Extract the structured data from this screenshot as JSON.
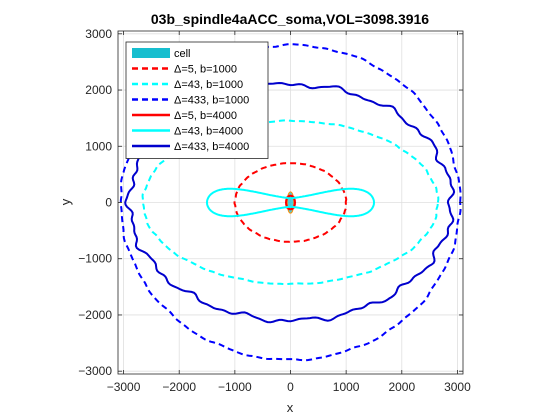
{
  "chart_data": {
    "type": "line",
    "title": "03b_spindle4aACC_soma,VOL=3098.3916",
    "xlabel": "x",
    "ylabel": "y",
    "xlim": [
      -3100,
      3100
    ],
    "ylim": [
      -3050,
      3050
    ],
    "xticks": [
      -3000,
      -2000,
      -1000,
      0,
      1000,
      2000,
      3000
    ],
    "yticks": [
      -3000,
      -2000,
      -1000,
      0,
      1000,
      2000,
      3000
    ],
    "grid": true,
    "legend_position": "top-left",
    "legend": [
      {
        "label": "cell",
        "color": "#17becf",
        "style": "patch"
      },
      {
        "label": "Δ=5, b=1000",
        "color": "#ff0000",
        "style": "dashed"
      },
      {
        "label": "Δ=43, b=1000",
        "color": "#00ffff",
        "style": "dashed"
      },
      {
        "label": "Δ=433, b=1000",
        "color": "#0000ff",
        "style": "dashed"
      },
      {
        "label": "Δ=5, b=4000",
        "color": "#ff0000",
        "style": "solid"
      },
      {
        "label": "Δ=43, b=4000",
        "color": "#00ffff",
        "style": "solid"
      },
      {
        "label": "Δ=433, b=4000",
        "color": "#0000cd",
        "style": "solid"
      }
    ],
    "cell": {
      "rx": 60,
      "ry": 190,
      "color": "#17becf"
    },
    "series": [
      {
        "name": "Δ=5, b=1000",
        "shape": "ellipse",
        "rx": 1000,
        "ry": 700,
        "color": "#ff0000",
        "style": "dashed"
      },
      {
        "name": "Δ=43, b=1000",
        "shape": "ellipse",
        "rx": 2650,
        "ry": 1450,
        "color": "#00ffff",
        "style": "dashed"
      },
      {
        "name": "Δ=433, b=1000",
        "shape": "ellipse",
        "rx": 3050,
        "ry": 2800,
        "color": "#0000ff",
        "style": "dashed"
      },
      {
        "name": "Δ=5, b=4000",
        "shape": "ellipse",
        "rx": 80,
        "ry": 120,
        "color": "#ff0000",
        "style": "solid"
      },
      {
        "name": "Δ=43, b=4000",
        "shape": "figure-eight",
        "rx": 1500,
        "ry": 320,
        "color": "#00ffff",
        "style": "solid"
      },
      {
        "name": "Δ=433, b=4000",
        "shape": "ellipse",
        "rx": 2900,
        "ry": 2100,
        "color": "#0000cd",
        "style": "solid"
      }
    ]
  }
}
